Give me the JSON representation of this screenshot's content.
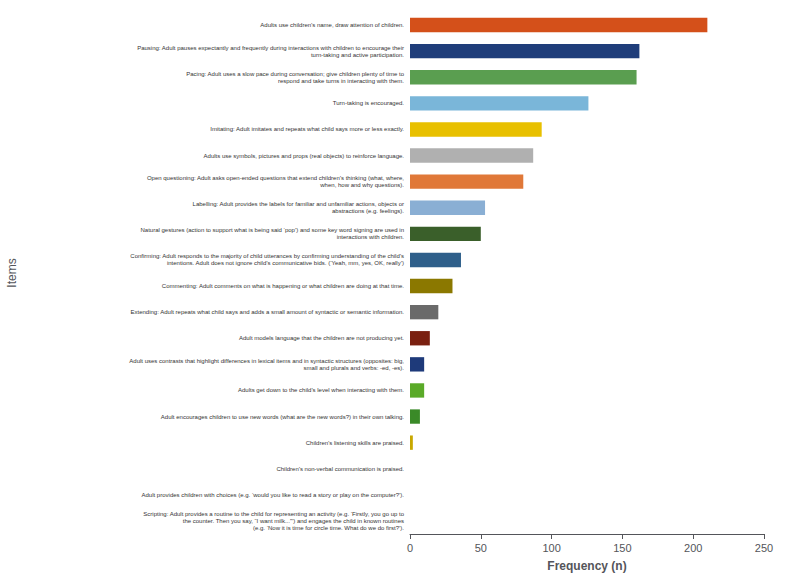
{
  "chart_data": {
    "type": "bar",
    "orientation": "horizontal",
    "categories": [
      "Adults use children’s name, draw attention of children.",
      "Pausing: Adult pauses expectantly and frequently during interactions with children to encourage their\nturn-taking and active participation.",
      "Pacing: Adult uses a slow pace during conversation; give children plenty of time to\nrespond and take turns in interacting with them.",
      "Turn-taking is encouraged.",
      "Imitating: Adult imitates and repeats what child says more or less exactly.",
      "Adults use symbols, pictures and props (real objects) to reinforce language.",
      "Open questioning: Adult asks open-ended questions that extend children’s thinking (what, where,\nwhen, how and why questions).",
      "Labelling: Adult provides the labels for familiar and unfamiliar actions, objects or\nabstractions (e.g. feelings).",
      "Natural gestures (action to support what is being said ‘pop’) and some key word signing are used in\ninteractions with children.",
      "Confirming: Adult responds to the majority of child utterances by confirming understanding of the child’s\nintentions. Adult does not ignore child’s communicative bids. (‘Yeah, mm, yes, OK, really’)",
      "Commenting: Adult comments on what is happening or what children are doing at that time.",
      "Extending: Adult repeats what child says and adds a small amount of syntactic or semantic information.",
      "Adult models language that the children are not producing yet.",
      "Adult uses contrasts that highlight differences in lexical items and in syntactic structures (opposites: big,\nsmall and plurals and verbs: -ed, -es).",
      "Adults get down to the child’s level when interacting with them.",
      "Adult encourages children to use new words (what are the new words?) in their own talking.",
      "Children’s listening skills are praised.",
      "Children’s non-verbal communication is praised.",
      "Adult provides children with choices (e.g. ‘would you like to read a story or play on the computer?’).",
      "Scripting: Adult provides a routine to the child for representing an activity (e.g. ‘Firstly, you go up to\nthe counter. Then you say, “I want milk...”’) and engages the child in known routines\n(e.g. ‘Now it is time for circle time. What do we do first?’)."
    ],
    "values": [
      210,
      162,
      160,
      126,
      93,
      87,
      80,
      53,
      50,
      36,
      30,
      20,
      14,
      10,
      10,
      7,
      2,
      0,
      0,
      0
    ],
    "colors": [
      "#d4501a",
      "#1f3d7a",
      "#5a9e50",
      "#7ab6d9",
      "#e8c000",
      "#b0b0b0",
      "#e07838",
      "#8aafd4",
      "#3a5f2a",
      "#2e5f8a",
      "#8b7800",
      "#6a6a6a",
      "#7a2010",
      "#1e3a7a",
      "#5aaa28",
      "#3a8a28",
      "#c8a800",
      "#999999",
      "#999999",
      "#999999"
    ],
    "xlabel": "Frequency (n)",
    "ylabel": "Items",
    "xlim": [
      0,
      250
    ],
    "xticks": [
      0,
      50,
      100,
      150,
      200,
      250
    ],
    "grid": false
  }
}
